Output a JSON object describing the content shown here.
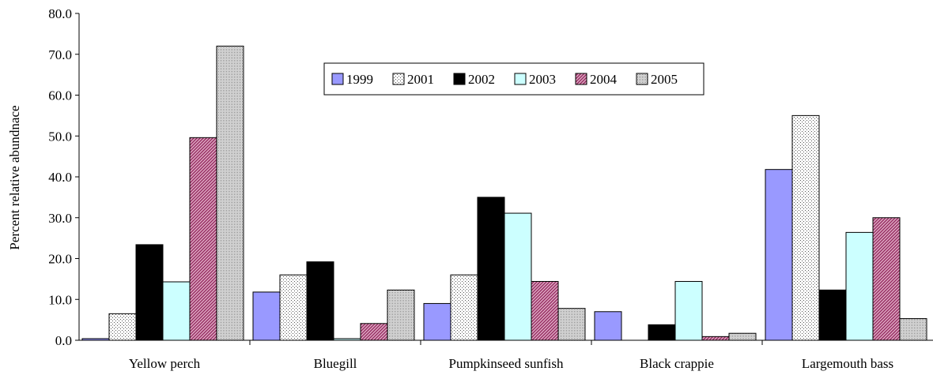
{
  "chart_data": {
    "type": "bar",
    "title": "",
    "xlabel": "",
    "ylabel": "Percent relative abundnace",
    "ylim": [
      0,
      80
    ],
    "yticks": [
      "0.0",
      "10.0",
      "20.0",
      "30.0",
      "40.0",
      "50.0",
      "60.0",
      "70.0",
      "80.0"
    ],
    "grid": false,
    "legend_position": "top-center",
    "categories": [
      "Yellow perch",
      "Bluegill",
      "Pumpkinseed sunfish",
      "Black crappie",
      "Largemouth bass"
    ],
    "series": [
      {
        "name": "1999",
        "values": [
          0.4,
          11.8,
          9.0,
          7.0,
          41.8
        ],
        "fill": "#9999ff",
        "pattern": "solid"
      },
      {
        "name": "2001",
        "values": [
          6.5,
          16.0,
          16.0,
          0.0,
          55.0
        ],
        "fill": "#ffffff",
        "pattern": "dots"
      },
      {
        "name": "2002",
        "values": [
          23.4,
          19.2,
          35.0,
          3.8,
          12.3
        ],
        "fill": "#000000",
        "pattern": "solid"
      },
      {
        "name": "2003",
        "values": [
          14.3,
          0.4,
          31.1,
          14.4,
          26.4
        ],
        "fill": "#ccffff",
        "pattern": "solid"
      },
      {
        "name": "2004",
        "values": [
          49.6,
          4.1,
          14.4,
          0.9,
          30.0
        ],
        "fill": "#993366",
        "pattern": "diagonal"
      },
      {
        "name": "2005",
        "values": [
          72.0,
          12.3,
          7.8,
          1.7,
          5.3
        ],
        "fill": "#ffffff",
        "pattern": "dense-dots"
      }
    ]
  }
}
